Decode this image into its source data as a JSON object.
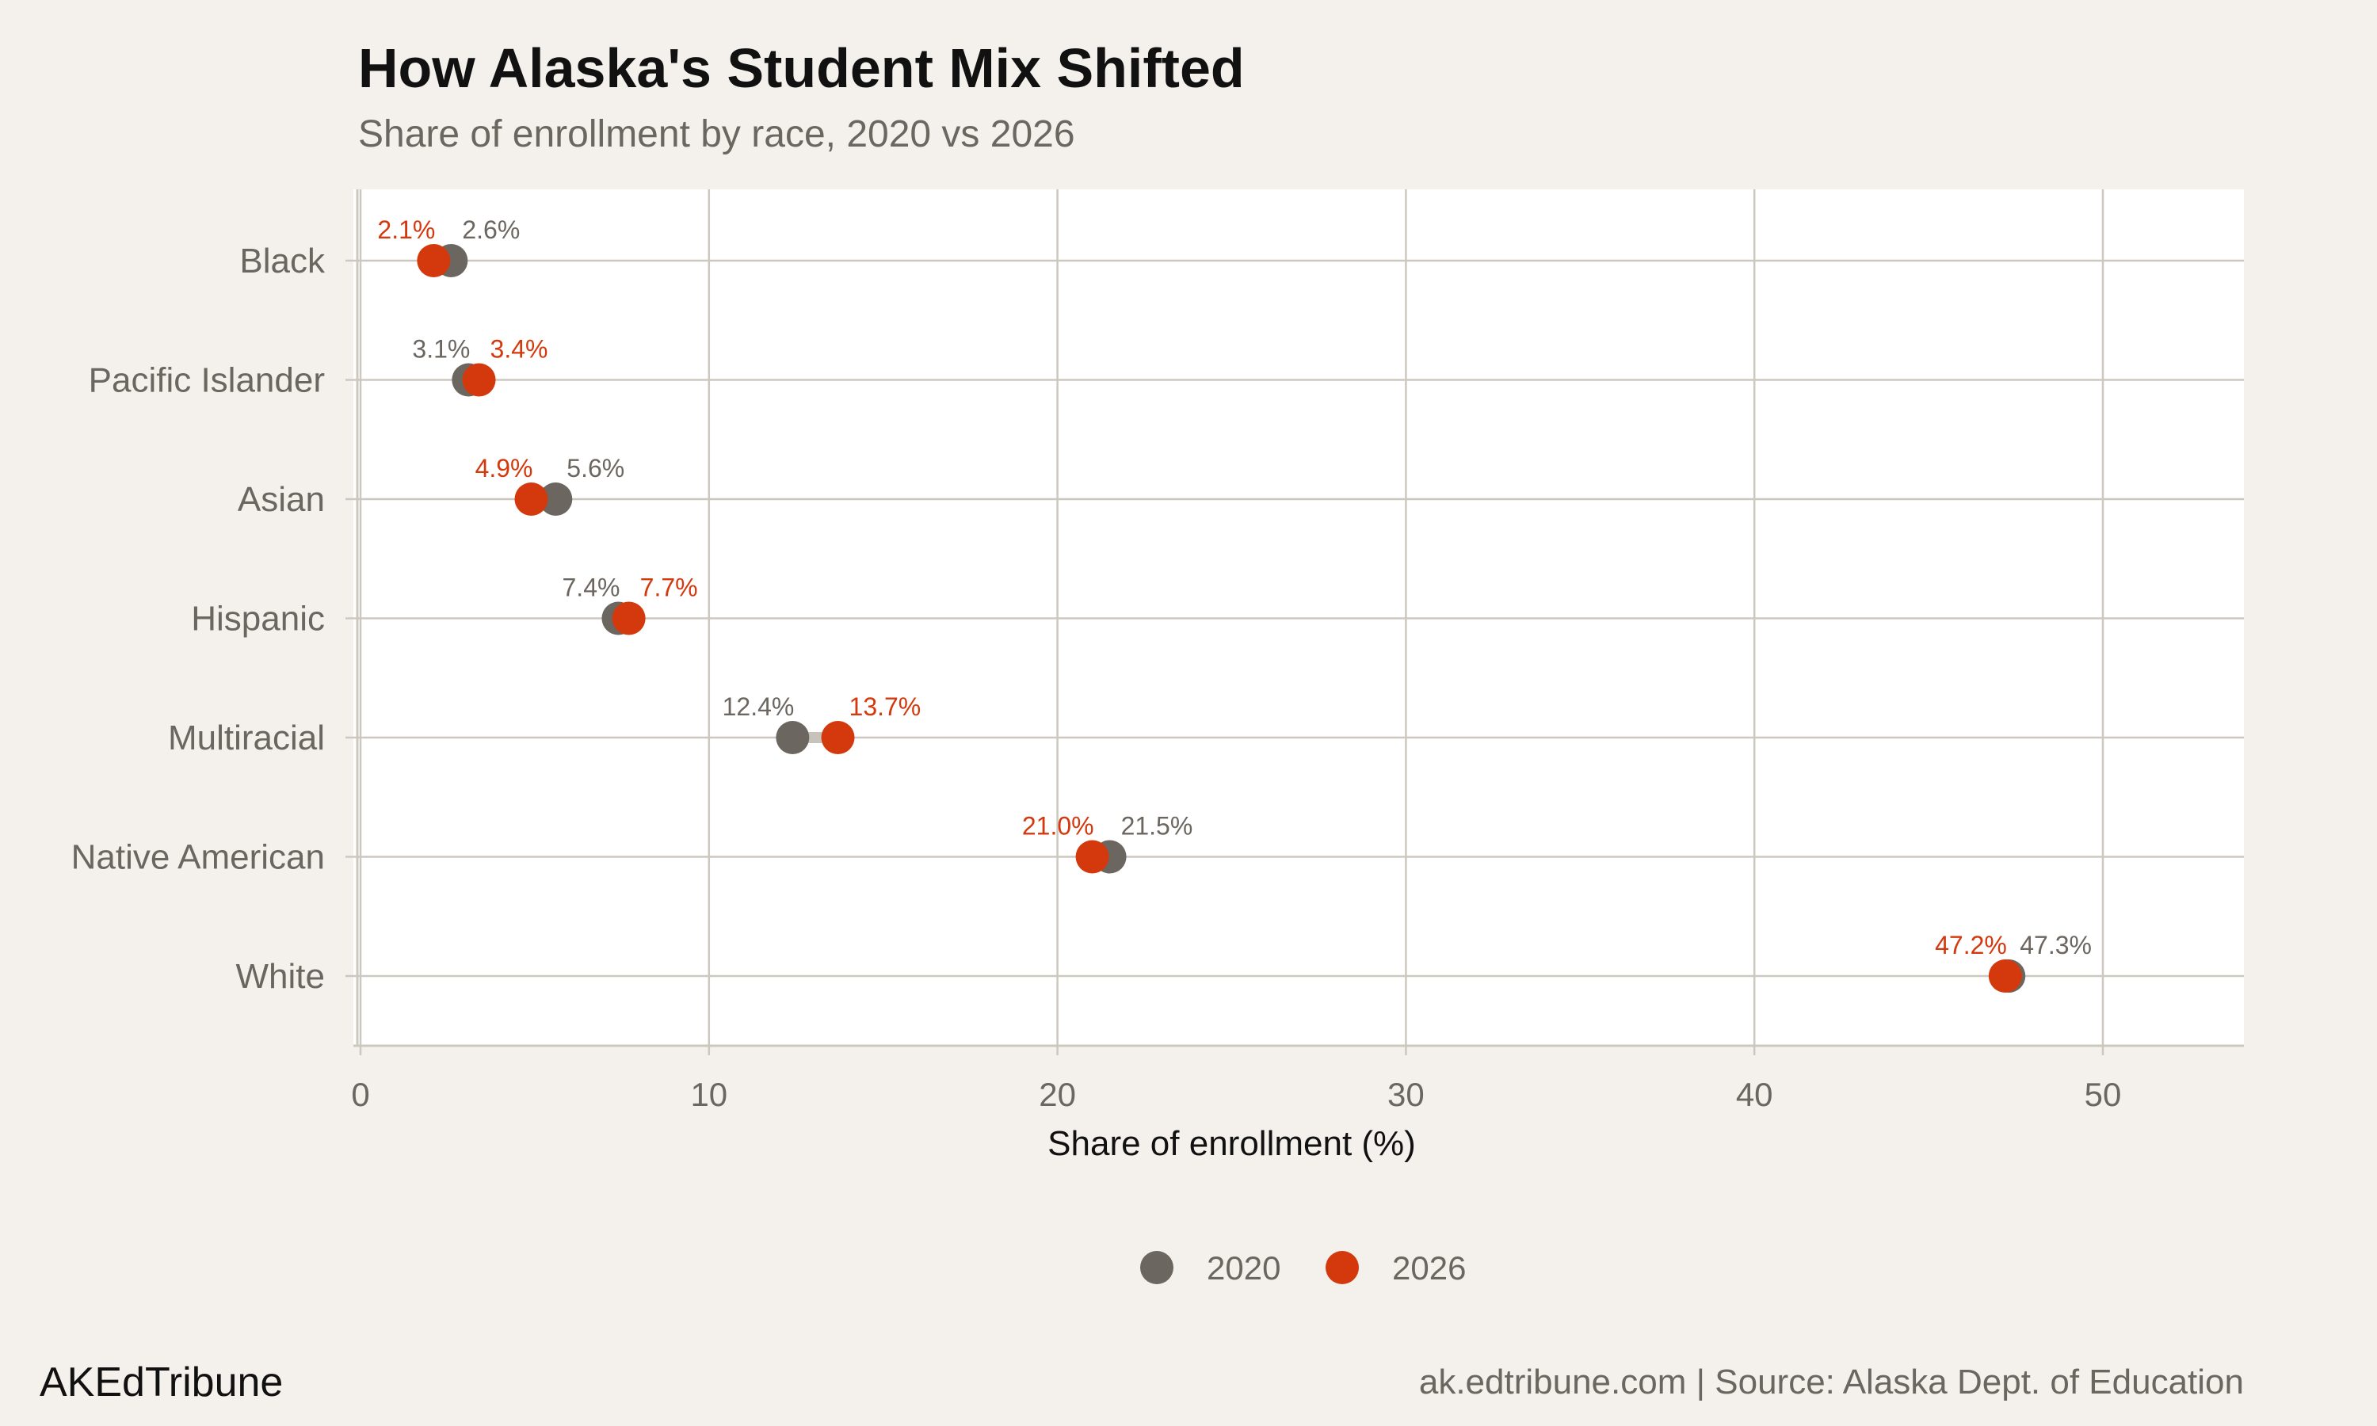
{
  "chart_data": {
    "type": "dumbbell",
    "title": "How Alaska's Student Mix Shifted",
    "subtitle": "Share of enrollment by race, 2020 vs 2026",
    "xlabel": "Share of enrollment (%)",
    "ylabel": "",
    "xlim": [
      0,
      54
    ],
    "xticks": [
      0,
      10,
      20,
      30,
      40,
      50
    ],
    "grid": true,
    "legend_position": "bottom",
    "categories": [
      "Black",
      "Pacific Islander",
      "Asian",
      "Hispanic",
      "Multiracial",
      "Native American",
      "White"
    ],
    "series": [
      {
        "name": "2020",
        "color": "#6b665f",
        "values": [
          2.6,
          3.1,
          5.6,
          7.4,
          12.4,
          21.5,
          47.3
        ],
        "labels": [
          "2.6%",
          "3.1%",
          "5.6%",
          "7.4%",
          "12.4%",
          "21.5%",
          "47.3%"
        ]
      },
      {
        "name": "2026",
        "color": "#d4390e",
        "values": [
          2.1,
          3.4,
          4.9,
          7.7,
          13.7,
          21.0,
          47.2
        ],
        "labels": [
          "2.1%",
          "3.4%",
          "4.9%",
          "7.7%",
          "13.7%",
          "21.0%",
          "47.2%"
        ]
      }
    ]
  },
  "footer": {
    "brand": "AKEdTribune",
    "source": "ak.edtribune.com | Source: Alaska Dept. of Education"
  }
}
